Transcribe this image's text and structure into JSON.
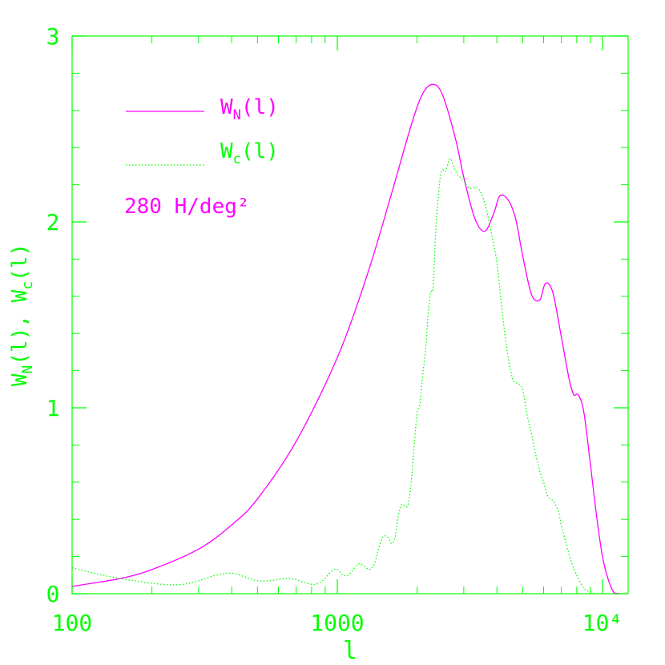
{
  "colors": {
    "axis": "#00ff00",
    "wn": "#ff00ff",
    "wc": "#00ff00",
    "background": "#ffffff"
  },
  "chart_data": {
    "type": "line",
    "x_scale": "log",
    "xlim": [
      100,
      12500
    ],
    "ylim": [
      0,
      3
    ],
    "grid": false,
    "legend_position": "top-left",
    "xlabel": "l",
    "ylabel": {
      "prefix": "W",
      "sub1": "N",
      "mid": "(l), W",
      "sub2": "c",
      "suffix": "(l)"
    },
    "x_ticks": [
      {
        "value": 100,
        "label": "100"
      },
      {
        "value": 1000,
        "label": "1000"
      },
      {
        "value": 10000,
        "label": "10⁴"
      }
    ],
    "y_ticks": [
      {
        "value": 0,
        "label": "0"
      },
      {
        "value": 1,
        "label": "1"
      },
      {
        "value": 2,
        "label": "2"
      },
      {
        "value": 3,
        "label": "3"
      }
    ],
    "annotation": "280 H/deg²",
    "series": [
      {
        "name": "W_N(l)",
        "legend": {
          "prefix": "W",
          "sub": "N",
          "suffix": "(l)"
        },
        "style": "solid",
        "color": "#ff00ff",
        "x": [
          100,
          150,
          200,
          300,
          400,
          500,
          700,
          1000,
          1300,
          1600,
          1900,
          2100,
          2300,
          2500,
          2800,
          3000,
          3300,
          3600,
          3900,
          4100,
          4400,
          4700,
          5000,
          5400,
          5800,
          6100,
          6500,
          7000,
          7500,
          7800,
          8100,
          8500,
          9000,
          9500,
          10000,
          10500,
          11000,
          11500
        ],
        "y": [
          0.04,
          0.08,
          0.13,
          0.24,
          0.37,
          0.51,
          0.82,
          1.27,
          1.72,
          2.15,
          2.52,
          2.69,
          2.74,
          2.68,
          2.44,
          2.24,
          2.02,
          1.95,
          2.05,
          2.14,
          2.12,
          2.02,
          1.82,
          1.61,
          1.58,
          1.67,
          1.62,
          1.38,
          1.15,
          1.07,
          1.07,
          0.98,
          0.7,
          0.42,
          0.2,
          0.08,
          0.01,
          0.0
        ]
      },
      {
        "name": "W_c(l)",
        "legend": {
          "prefix": "W",
          "sub": "c",
          "suffix": "(l)"
        },
        "style": "dotted",
        "color": "#00ff00",
        "x": [
          100,
          130,
          170,
          220,
          260,
          300,
          350,
          400,
          450,
          500,
          560,
          620,
          680,
          750,
          820,
          880,
          950,
          1000,
          1050,
          1100,
          1150,
          1200,
          1260,
          1320,
          1380,
          1450,
          1500,
          1560,
          1600,
          1650,
          1700,
          1750,
          1800,
          1850,
          1900,
          1950,
          2000,
          2050,
          2100,
          2150,
          2200,
          2250,
          2300,
          2350,
          2400,
          2450,
          2500,
          2550,
          2600,
          2650,
          2700,
          2750,
          2800,
          2900,
          3000,
          3100,
          3200,
          3400,
          3600,
          3800,
          4000,
          4200,
          4400,
          4600,
          4800,
          5000,
          5200,
          5400,
          5600,
          5800,
          6000,
          6200,
          6500,
          6800,
          7000,
          7300,
          7600,
          8000,
          8500,
          9000,
          9500,
          10000,
          10500,
          11000,
          11500
        ],
        "y": [
          0.14,
          0.1,
          0.07,
          0.05,
          0.05,
          0.07,
          0.1,
          0.11,
          0.09,
          0.07,
          0.07,
          0.08,
          0.08,
          0.06,
          0.05,
          0.07,
          0.12,
          0.13,
          0.1,
          0.1,
          0.13,
          0.16,
          0.15,
          0.13,
          0.16,
          0.27,
          0.31,
          0.3,
          0.27,
          0.3,
          0.42,
          0.48,
          0.47,
          0.48,
          0.6,
          0.8,
          0.97,
          1.02,
          1.18,
          1.3,
          1.5,
          1.62,
          1.65,
          1.95,
          2.12,
          2.25,
          2.28,
          2.27,
          2.3,
          2.34,
          2.33,
          2.3,
          2.27,
          2.24,
          2.22,
          2.19,
          2.18,
          2.18,
          2.1,
          1.95,
          1.78,
          1.5,
          1.28,
          1.15,
          1.13,
          1.1,
          0.96,
          0.86,
          0.75,
          0.66,
          0.6,
          0.53,
          0.5,
          0.45,
          0.37,
          0.27,
          0.18,
          0.1,
          0.03,
          0.01,
          0.0,
          0.0,
          0.0,
          0.0,
          0.0
        ]
      }
    ]
  }
}
